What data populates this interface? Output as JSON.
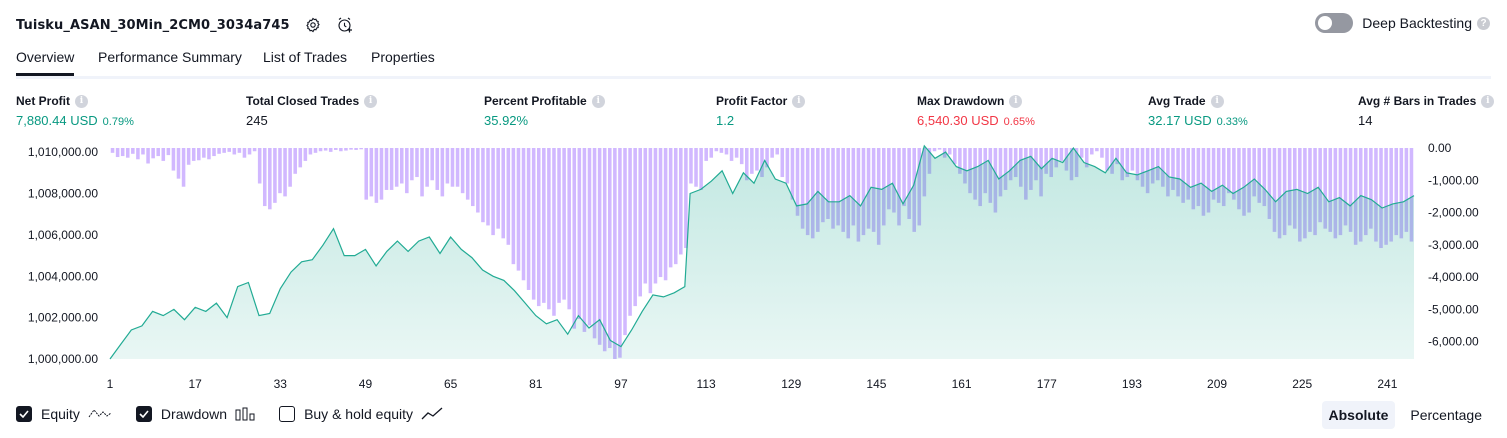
{
  "header": {
    "strategy_title": "Tuisku_ASAN_30Min_2CM0_3034a745",
    "deep_backtesting_label": "Deep Backtesting",
    "help_glyph": "?"
  },
  "tabs": [
    {
      "label": "Overview",
      "active": true
    },
    {
      "label": "Performance Summary",
      "active": false
    },
    {
      "label": "List of Trades",
      "active": false
    },
    {
      "label": "Properties",
      "active": false
    }
  ],
  "stats": [
    {
      "label": "Net Profit",
      "value": "7,880.44 USD",
      "pct": "0.79%",
      "color": "#089981"
    },
    {
      "label": "Total Closed Trades",
      "value": "245",
      "pct": "",
      "color": "#131722"
    },
    {
      "label": "Percent Profitable",
      "value": "35.92%",
      "pct": "",
      "color": "#089981"
    },
    {
      "label": "Profit Factor",
      "value": "1.2",
      "pct": "",
      "color": "#089981"
    },
    {
      "label": "Max Drawdown",
      "value": "6,540.30 USD",
      "pct": "0.65%",
      "color": "#f23645"
    },
    {
      "label": "Avg Trade",
      "value": "32.17 USD",
      "pct": "0.33%",
      "color": "#089981"
    },
    {
      "label": "Avg # Bars in Trades",
      "value": "14",
      "pct": "",
      "color": "#131722"
    }
  ],
  "legend": {
    "equity_label": "Equity",
    "drawdown_label": "Drawdown",
    "buy_hold_label": "Buy & hold equity",
    "equity_checked": true,
    "drawdown_checked": true,
    "buy_hold_checked": false
  },
  "modes": [
    {
      "label": "Absolute",
      "active": true
    },
    {
      "label": "Percentage",
      "active": false
    }
  ],
  "chart_data": {
    "type": "area",
    "x_ticks": [
      "1",
      "17",
      "33",
      "49",
      "65",
      "81",
      "97",
      "113",
      "129",
      "145",
      "161",
      "177",
      "193",
      "209",
      "225",
      "241"
    ],
    "left_axis": {
      "ticks": [
        "1,000,000.00",
        "1,002,000.00",
        "1,004,000.00",
        "1,006,000.00",
        "1,008,000.00",
        "1,010,000.00"
      ],
      "range": [
        1000000,
        1010200
      ]
    },
    "right_axis": {
      "ticks": [
        "0.00",
        "-1,000.00",
        "-2,000.00",
        "-3,000.00",
        "-4,000.00",
        "-5,000.00",
        "-6,000.00"
      ],
      "range": [
        -6540,
        0
      ]
    },
    "colors": {
      "equity_line": "#22ab94",
      "equity_fill": "#22ab94",
      "drawdown_bar": "#b388ff",
      "axis_text": "#131722"
    },
    "x_range": [
      1,
      246
    ],
    "series": [
      {
        "name": "Equity",
        "kind": "line",
        "points": [
          [
            1,
            1000000
          ],
          [
            3,
            1000700
          ],
          [
            5,
            1001400
          ],
          [
            7,
            1001600
          ],
          [
            9,
            1002300
          ],
          [
            11,
            1002100
          ],
          [
            13,
            1002400
          ],
          [
            15,
            1001900
          ],
          [
            17,
            1002500
          ],
          [
            19,
            1002300
          ],
          [
            21,
            1002700
          ],
          [
            23,
            1002000
          ],
          [
            25,
            1003500
          ],
          [
            27,
            1003700
          ],
          [
            29,
            1002100
          ],
          [
            31,
            1002200
          ],
          [
            33,
            1003400
          ],
          [
            35,
            1004200
          ],
          [
            37,
            1004700
          ],
          [
            39,
            1004800
          ],
          [
            41,
            1005500
          ],
          [
            43,
            1006300
          ],
          [
            45,
            1005000
          ],
          [
            47,
            1005000
          ],
          [
            49,
            1005300
          ],
          [
            51,
            1004500
          ],
          [
            53,
            1005200
          ],
          [
            55,
            1005700
          ],
          [
            57,
            1005200
          ],
          [
            59,
            1005700
          ],
          [
            61,
            1005900
          ],
          [
            63,
            1005100
          ],
          [
            65,
            1005900
          ],
          [
            67,
            1005300
          ],
          [
            69,
            1004900
          ],
          [
            71,
            1004300
          ],
          [
            73,
            1004000
          ],
          [
            75,
            1003800
          ],
          [
            77,
            1003300
          ],
          [
            79,
            1002700
          ],
          [
            81,
            1002100
          ],
          [
            83,
            1001700
          ],
          [
            85,
            1001900
          ],
          [
            87,
            1001200
          ],
          [
            89,
            1002100
          ],
          [
            91,
            1001500
          ],
          [
            93,
            1001900
          ],
          [
            95,
            1000900
          ],
          [
            97,
            1000600
          ],
          [
            99,
            1001400
          ],
          [
            101,
            1002300
          ],
          [
            103,
            1003100
          ],
          [
            105,
            1003000
          ],
          [
            107,
            1003200
          ],
          [
            109,
            1003500
          ],
          [
            110,
            1008000
          ],
          [
            112,
            1008200
          ],
          [
            114,
            1008600
          ],
          [
            116,
            1009100
          ],
          [
            118,
            1008000
          ],
          [
            120,
            1009000
          ],
          [
            122,
            1008500
          ],
          [
            124,
            1009600
          ],
          [
            126,
            1008700
          ],
          [
            128,
            1008500
          ],
          [
            130,
            1007400
          ],
          [
            132,
            1007500
          ],
          [
            134,
            1008100
          ],
          [
            136,
            1007600
          ],
          [
            138,
            1007600
          ],
          [
            140,
            1007900
          ],
          [
            142,
            1007400
          ],
          [
            144,
            1008300
          ],
          [
            146,
            1008200
          ],
          [
            148,
            1008500
          ],
          [
            150,
            1007500
          ],
          [
            152,
            1008400
          ],
          [
            154,
            1010300
          ],
          [
            156,
            1009700
          ],
          [
            158,
            1010000
          ],
          [
            160,
            1009300
          ],
          [
            162,
            1009100
          ],
          [
            164,
            1009300
          ],
          [
            166,
            1009600
          ],
          [
            168,
            1008700
          ],
          [
            170,
            1009100
          ],
          [
            172,
            1009600
          ],
          [
            174,
            1009800
          ],
          [
            176,
            1009200
          ],
          [
            178,
            1009700
          ],
          [
            180,
            1009500
          ],
          [
            182,
            1010200
          ],
          [
            184,
            1009500
          ],
          [
            186,
            1009300
          ],
          [
            188,
            1009000
          ],
          [
            190,
            1009700
          ],
          [
            192,
            1009000
          ],
          [
            194,
            1008900
          ],
          [
            196,
            1009100
          ],
          [
            198,
            1009300
          ],
          [
            200,
            1008800
          ],
          [
            202,
            1008700
          ],
          [
            204,
            1008300
          ],
          [
            206,
            1008500
          ],
          [
            208,
            1008100
          ],
          [
            210,
            1008400
          ],
          [
            212,
            1008000
          ],
          [
            214,
            1008300
          ],
          [
            216,
            1008700
          ],
          [
            218,
            1008200
          ],
          [
            220,
            1007600
          ],
          [
            222,
            1008100
          ],
          [
            224,
            1008200
          ],
          [
            226,
            1008000
          ],
          [
            228,
            1008300
          ],
          [
            230,
            1007600
          ],
          [
            232,
            1007800
          ],
          [
            234,
            1007400
          ],
          [
            236,
            1007900
          ],
          [
            238,
            1007700
          ],
          [
            240,
            1007300
          ],
          [
            242,
            1007500
          ],
          [
            244,
            1007600
          ],
          [
            246,
            1007900
          ]
        ]
      },
      {
        "name": "Drawdown",
        "kind": "bar",
        "values": [
          -150,
          -280,
          -250,
          -300,
          -180,
          -350,
          -200,
          -480,
          -320,
          -250,
          -400,
          -220,
          -700,
          -950,
          -1200,
          -520,
          -400,
          -380,
          -300,
          -350,
          -250,
          -180,
          -150,
          -120,
          -200,
          -150,
          -300,
          -200,
          -100,
          -1100,
          -1800,
          -1900,
          -1700,
          -1400,
          -1500,
          -1200,
          -800,
          -600,
          -400,
          -200,
          -150,
          -100,
          -80,
          -120,
          -60,
          -100,
          -80,
          -50,
          -60,
          -40,
          -1600,
          -1500,
          -1700,
          -1600,
          -1300,
          -1300,
          -1200,
          -1100,
          -1400,
          -1000,
          -900,
          -1500,
          -1200,
          -1000,
          -1300,
          -1500,
          -1100,
          -1200,
          -1200,
          -1400,
          -1600,
          -1800,
          -2000,
          -2300,
          -2400,
          -2700,
          -2500,
          -2800,
          -3000,
          -3600,
          -3800,
          -4100,
          -4400,
          -4700,
          -4900,
          -4800,
          -5000,
          -5200,
          -4800,
          -4700,
          -5000,
          -5600,
          -5300,
          -5700,
          -5500,
          -5900,
          -6100,
          -6300,
          -6200,
          -6540,
          -6500,
          -5800,
          -5200,
          -4900,
          -4600,
          -4200,
          -4500,
          -4200,
          -4000,
          -4100,
          -3700,
          -3600,
          -3300,
          -3100,
          -1100,
          -1200,
          -1300,
          -400,
          -300,
          -100,
          -150,
          -200,
          -400,
          -300,
          -500,
          -1000,
          -800,
          -700,
          -900,
          -600,
          -300,
          -200,
          -900,
          -1100,
          -1600,
          -2100,
          -2500,
          -2700,
          -2800,
          -2600,
          -2300,
          -2200,
          -2500,
          -2400,
          -2600,
          -2800,
          -2400,
          -2900,
          -2700,
          -2500,
          -2600,
          -3000,
          -2400,
          -1900,
          -2000,
          -2400,
          -1800,
          -2200,
          -2600,
          -2400,
          -1500,
          -800,
          -100,
          -50,
          -300,
          -200,
          -500,
          -800,
          -1100,
          -1400,
          -1600,
          -1800,
          -1400,
          -1700,
          -2000,
          -1500,
          -1300,
          -1000,
          -900,
          -1200,
          -1600,
          -1300,
          -1000,
          -1500,
          -800,
          -900,
          -600,
          -400,
          -700,
          -1000,
          -900,
          -300,
          -600,
          -200,
          -100,
          -300,
          -700,
          -800,
          -500,
          -1000,
          -900,
          -700,
          -1000,
          -1200,
          -1400,
          -1100,
          -1000,
          -1200,
          -1500,
          -1300,
          -1500,
          -1700,
          -1600,
          -1900,
          -1800,
          -2100,
          -2000,
          -1600,
          -1700,
          -1800,
          -1400,
          -1600,
          -1900,
          -2100,
          -2000,
          -1500,
          -1700,
          -1800,
          -2200,
          -2600,
          -2800,
          -2700,
          -2400,
          -2500,
          -2900,
          -2800,
          -2600,
          -2700,
          -2300,
          -2500,
          -2600,
          -2800,
          -2700,
          -2400,
          -2600,
          -3000,
          -2900,
          -2700,
          -2500,
          -2900,
          -3100,
          -3000,
          -2900,
          -2700,
          -2800,
          -2600,
          -2900
        ]
      }
    ]
  }
}
